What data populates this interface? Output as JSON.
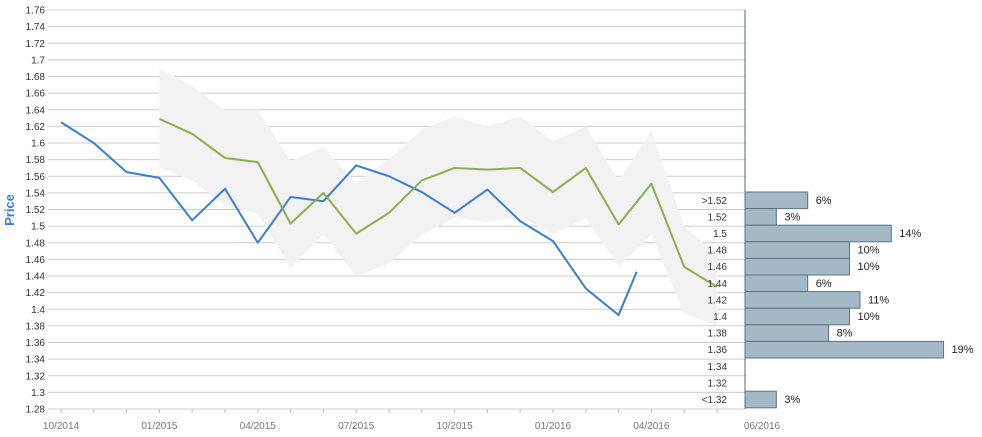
{
  "chart_data": {
    "type": "line",
    "ylabel": "Price",
    "ylim": [
      1.28,
      1.76
    ],
    "y_ticks": [
      "1.28",
      "1.3",
      "1.32",
      "1.34",
      "1.36",
      "1.38",
      "1.4",
      "1.42",
      "1.44",
      "1.46",
      "1.48",
      "1.5",
      "1.52",
      "1.54",
      "1.56",
      "1.58",
      "1.6",
      "1.62",
      "1.64",
      "1.66",
      "1.68",
      "1.7",
      "1.72",
      "1.74",
      "1.76"
    ],
    "x_ticks": [
      "10/2014",
      "01/2015",
      "04/2015",
      "07/2015",
      "10/2015",
      "01/2016",
      "04/2016",
      "06/2016"
    ],
    "grid": true,
    "colors": {
      "blue": "#3a7fcf",
      "green": "#8aaf4f",
      "band": "#f2f2f2",
      "bar_fill": "#a3b9c6",
      "bar_stroke": "#5a7384",
      "grid": "#cccccc",
      "axis": "#4a6b80"
    },
    "series": [
      {
        "color": "blue",
        "points": [
          [
            "10/2014",
            1.625
          ],
          [
            "11/2014",
            1.6
          ],
          [
            "12/2014",
            1.565
          ],
          [
            "01/2015",
            1.558
          ],
          [
            "02/2015",
            1.507
          ],
          [
            "03/2015",
            1.545
          ],
          [
            "04/2015",
            1.48
          ],
          [
            "05/2015",
            1.535
          ],
          [
            "06/2015",
            1.53
          ],
          [
            "07/2015",
            1.573
          ],
          [
            "08/2015",
            1.56
          ],
          [
            "09/2015",
            1.541
          ],
          [
            "10/2015",
            1.516
          ],
          [
            "11/2015",
            1.544
          ],
          [
            "12/2015",
            1.506
          ],
          [
            "01/2016",
            1.482
          ],
          [
            "02/2016",
            1.425
          ],
          [
            "03/2016",
            1.393
          ],
          [
            "03/2016 (late)",
            1.445
          ]
        ]
      },
      {
        "color": "green",
        "points": [
          [
            "01/2015",
            1.629
          ],
          [
            "02/2015",
            1.611
          ],
          [
            "03/2015",
            1.582
          ],
          [
            "04/2015",
            1.577
          ],
          [
            "05/2015",
            1.503
          ],
          [
            "06/2015",
            1.54
          ],
          [
            "07/2015",
            1.491
          ],
          [
            "08/2015",
            1.516
          ],
          [
            "09/2015",
            1.555
          ],
          [
            "10/2015",
            1.57
          ],
          [
            "11/2015",
            1.568
          ],
          [
            "12/2015",
            1.57
          ],
          [
            "01/2016",
            1.541
          ],
          [
            "02/2016",
            1.57
          ],
          [
            "03/2016",
            1.502
          ],
          [
            "04/2016",
            1.551
          ],
          [
            "05/2016",
            1.451
          ],
          [
            "06/2016",
            1.427
          ]
        ]
      }
    ],
    "band": {
      "color": "band",
      "upper": [
        1.69,
        1.668,
        1.64,
        1.64,
        1.578,
        1.595,
        1.552,
        1.58,
        1.616,
        1.632,
        1.62,
        1.632,
        1.602,
        1.62,
        1.554,
        1.614,
        1.5,
        1.465
      ],
      "lower": [
        1.57,
        1.555,
        1.525,
        1.515,
        1.45,
        1.49,
        1.44,
        1.455,
        1.49,
        1.51,
        1.505,
        1.512,
        1.49,
        1.51,
        1.452,
        1.49,
        1.395,
        1.38
      ]
    },
    "distribution": [
      {
        "label": ">1.52",
        "percent": 6,
        "percent_label": "6%"
      },
      {
        "label": "1.52",
        "percent": 3,
        "percent_label": "3%"
      },
      {
        "label": "1.5",
        "percent": 14,
        "percent_label": "14%"
      },
      {
        "label": "1.48",
        "percent": 10,
        "percent_label": "10%"
      },
      {
        "label": "1.46",
        "percent": 10,
        "percent_label": "10%"
      },
      {
        "label": "1.44",
        "percent": 6,
        "percent_label": "6%"
      },
      {
        "label": "1.42",
        "percent": 11,
        "percent_label": "11%"
      },
      {
        "label": "1.4",
        "percent": 10,
        "percent_label": "10%"
      },
      {
        "label": "1.38",
        "percent": 8,
        "percent_label": "8%"
      },
      {
        "label": "1.36",
        "percent": 19,
        "percent_label": "19%"
      },
      {
        "label": "1.34",
        "percent": 0,
        "percent_label": ""
      },
      {
        "label": "1.32",
        "percent": 0,
        "percent_label": ""
      },
      {
        "label": "<1.32",
        "percent": 3,
        "percent_label": "3%"
      }
    ]
  }
}
